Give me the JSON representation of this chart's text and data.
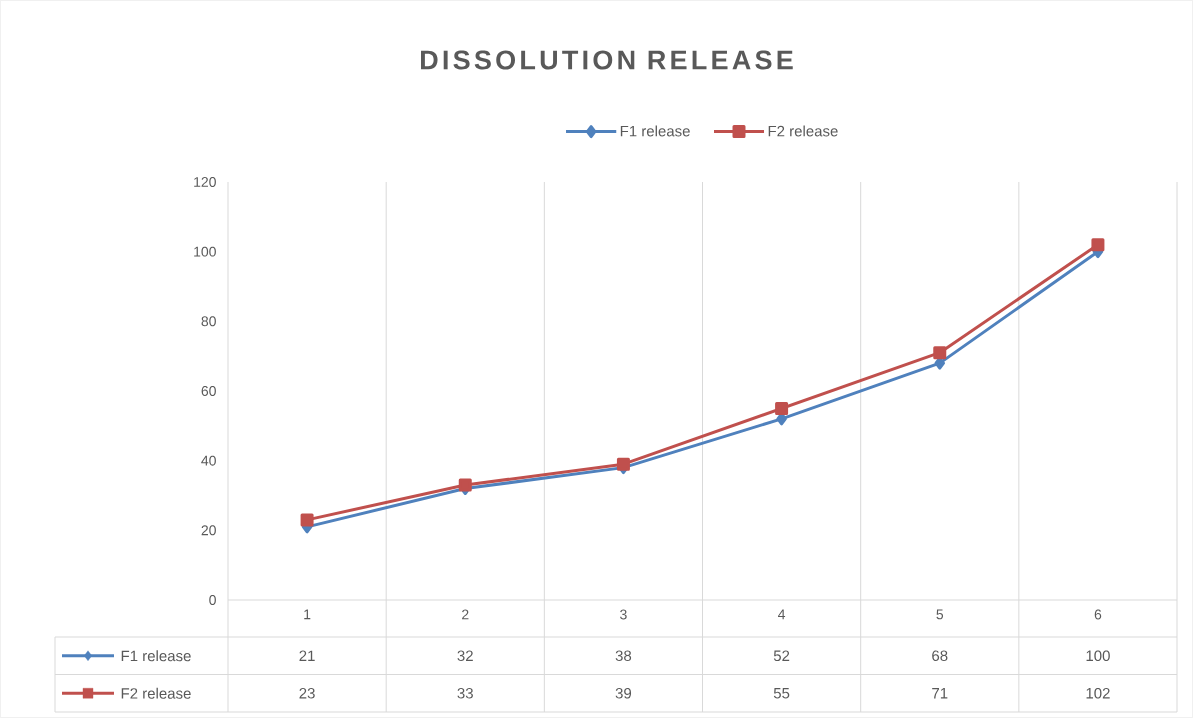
{
  "chart_data": {
    "type": "line",
    "title": "DISSOLUTION RELEASE",
    "categories": [
      "1",
      "2",
      "3",
      "4",
      "5",
      "6"
    ],
    "series": [
      {
        "name": "F1 release",
        "color": "#4f81bd",
        "marker": "diamond",
        "values": [
          21,
          32,
          38,
          52,
          68,
          100
        ],
        "value_labels": [
          "21",
          "32",
          "38",
          "52",
          "68",
          "100"
        ]
      },
      {
        "name": "F2 release",
        "color": "#c0504d",
        "marker": "square",
        "values": [
          23,
          33,
          39,
          55,
          71,
          102
        ],
        "value_labels": [
          "23",
          "33",
          "39",
          "55",
          "71",
          "102"
        ]
      }
    ],
    "ylim": [
      0,
      120
    ],
    "yticks": [
      0,
      20,
      40,
      60,
      80,
      100,
      120
    ],
    "grid": "x",
    "legend": "top"
  }
}
